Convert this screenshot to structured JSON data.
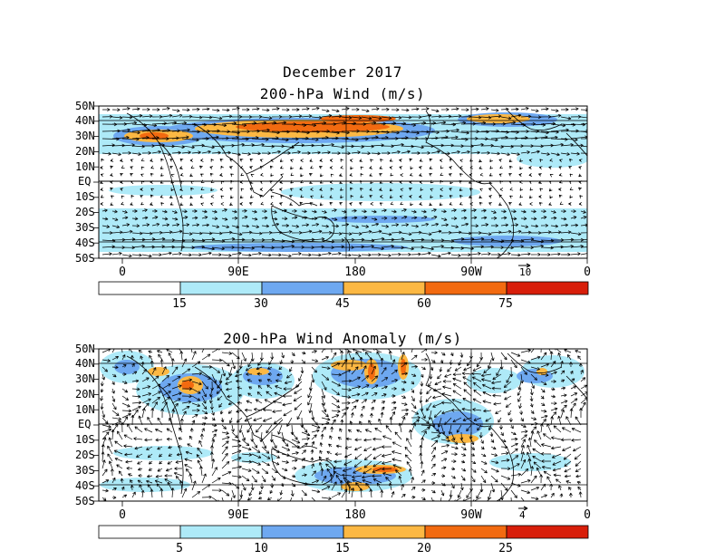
{
  "header": {
    "title": "December 2017",
    "panel1_title": "200-hPa Wind (m/s)",
    "panel2_title": "200-hPa Wind Anomaly (m/s)"
  },
  "lat_labels": [
    "50N",
    "40N",
    "30N",
    "20N",
    "10N",
    "EQ",
    "10S",
    "20S",
    "30S",
    "40S",
    "50S"
  ],
  "lon_labels": [
    "0",
    "90E",
    "180",
    "90W",
    "0"
  ],
  "panel1": {
    "ref_vector_label": "10",
    "colorbar": {
      "labels": [
        "15",
        "30",
        "45",
        "60",
        "75"
      ],
      "colors": [
        "#ffffff",
        "#aeeaf8",
        "#6ea8f0",
        "#fcb843",
        "#f26a10",
        "#d81e0a"
      ]
    }
  },
  "panel2": {
    "ref_vector_label": "4",
    "colorbar": {
      "labels": [
        "5",
        "10",
        "15",
        "20",
        "25"
      ],
      "colors": [
        "#ffffff",
        "#aeeaf8",
        "#6ea8f0",
        "#fcb843",
        "#f26a10",
        "#d81e0a"
      ]
    }
  }
}
